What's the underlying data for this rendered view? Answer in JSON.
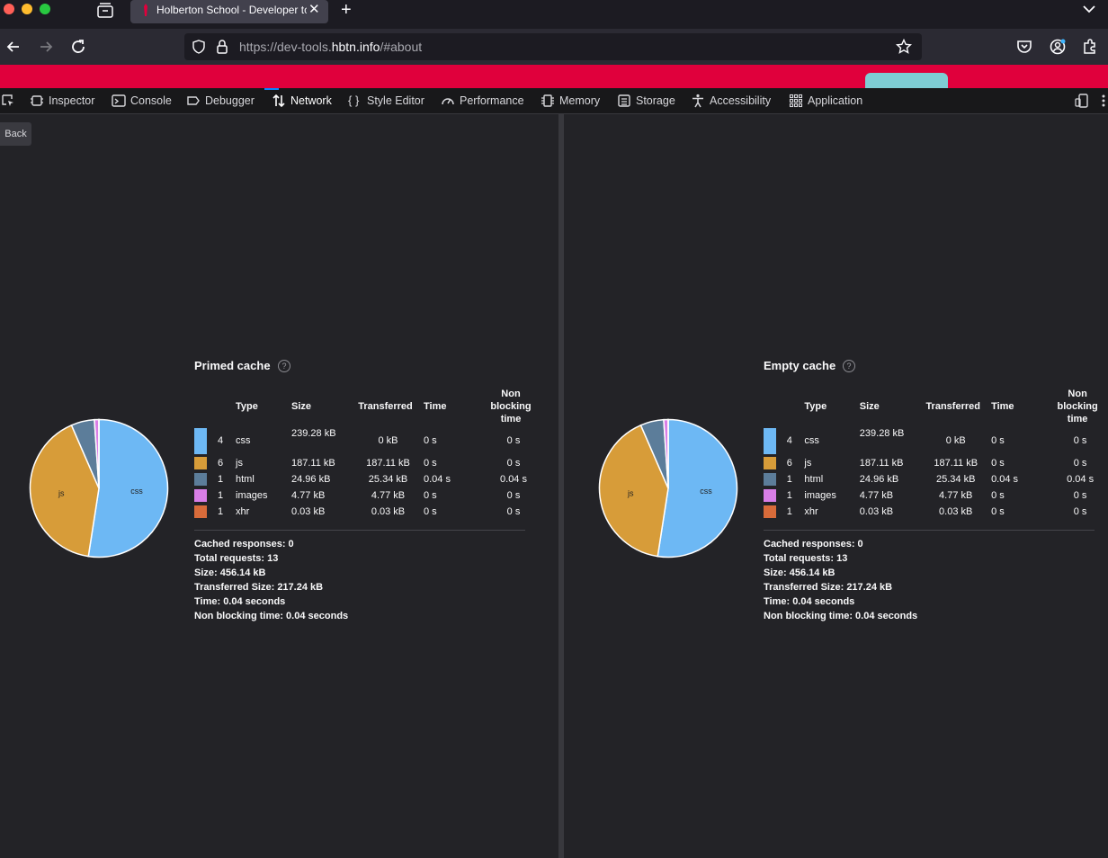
{
  "browser": {
    "tab_title": "Holberton School - Developer tc",
    "url_prefix": "https://dev-tools.",
    "url_domain": "hbtn.info",
    "url_suffix": "/#about"
  },
  "devtools": {
    "tabs": [
      "Inspector",
      "Console",
      "Debugger",
      "Network",
      "Style Editor",
      "Performance",
      "Memory",
      "Storage",
      "Accessibility",
      "Application"
    ],
    "selected": "Network"
  },
  "back_label": "Back",
  "colors": {
    "css": "#6db8f4",
    "js": "#d79c39",
    "html": "#5c7d9a",
    "images": "#d97ee7",
    "xhr": "#d86b3a"
  },
  "headers": {
    "type": "Type",
    "size": "Size",
    "transferred": "Transferred",
    "time": "Time",
    "nonblocking": "Non blocking time"
  },
  "panels": [
    {
      "title": "Primed cache",
      "rows": [
        {
          "count": "4",
          "type": "css",
          "size": "239.28 kB",
          "transferred": "0 kB",
          "time": "0 s",
          "nonblocking": "0 s"
        },
        {
          "count": "6",
          "type": "js",
          "size": "187.11 kB",
          "transferred": "187.11 kB",
          "time": "0 s",
          "nonblocking": "0 s"
        },
        {
          "count": "1",
          "type": "html",
          "size": "24.96 kB",
          "transferred": "25.34 kB",
          "time": "0.04 s",
          "nonblocking": "0.04 s"
        },
        {
          "count": "1",
          "type": "images",
          "size": "4.77 kB",
          "transferred": "4.77 kB",
          "time": "0 s",
          "nonblocking": "0 s"
        },
        {
          "count": "1",
          "type": "xhr",
          "size": "0.03 kB",
          "transferred": "0.03 kB",
          "time": "0 s",
          "nonblocking": "0 s"
        }
      ],
      "summary": {
        "cached": "Cached responses: 0",
        "total": "Total requests: 13",
        "size": "Size: 456.14 kB",
        "transferred": "Transferred Size: 217.24 kB",
        "time": "Time: 0.04 seconds",
        "nonblocking": "Non blocking time: 0.04 seconds"
      },
      "pie_labels": {
        "css": "css",
        "js": "js"
      }
    },
    {
      "title": "Empty cache",
      "rows": [
        {
          "count": "4",
          "type": "css",
          "size": "239.28 kB",
          "transferred": "0 kB",
          "time": "0 s",
          "nonblocking": "0 s"
        },
        {
          "count": "6",
          "type": "js",
          "size": "187.11 kB",
          "transferred": "187.11 kB",
          "time": "0 s",
          "nonblocking": "0 s"
        },
        {
          "count": "1",
          "type": "html",
          "size": "24.96 kB",
          "transferred": "25.34 kB",
          "time": "0.04 s",
          "nonblocking": "0.04 s"
        },
        {
          "count": "1",
          "type": "images",
          "size": "4.77 kB",
          "transferred": "4.77 kB",
          "time": "0 s",
          "nonblocking": "0 s"
        },
        {
          "count": "1",
          "type": "xhr",
          "size": "0.03 kB",
          "transferred": "0.03 kB",
          "time": "0 s",
          "nonblocking": "0 s"
        }
      ],
      "summary": {
        "cached": "Cached responses: 0",
        "total": "Total requests: 13",
        "size": "Size: 456.14 kB",
        "transferred": "Transferred Size: 217.24 kB",
        "time": "Time: 0.04 seconds",
        "nonblocking": "Non blocking time: 0.04 seconds"
      },
      "pie_labels": {
        "css": "css",
        "js": "js"
      }
    }
  ],
  "chart_data": [
    {
      "type": "pie",
      "categories": [
        "css",
        "js",
        "html",
        "images",
        "xhr"
      ],
      "values": [
        239.28,
        187.11,
        24.96,
        4.77,
        0.03
      ]
    },
    {
      "type": "pie",
      "categories": [
        "css",
        "js",
        "html",
        "images",
        "xhr"
      ],
      "values": [
        239.28,
        187.11,
        24.96,
        4.77,
        0.03
      ]
    }
  ]
}
